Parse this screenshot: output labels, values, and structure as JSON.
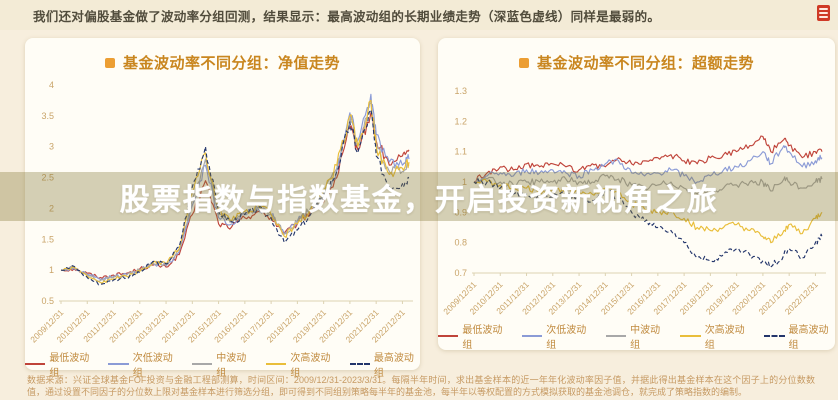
{
  "header": {
    "text": "我们还对偏股基金做了波动率分组回测，结果显示：最高波动组的长期业绩走势（深蓝色虚线）同样是最弱的。"
  },
  "banner": {
    "text": "股票指数与指数基金，开启投资新视角之旅"
  },
  "footer": {
    "text": "数据来源：兴证全球基金FOF投资与金融工程部测算，时间区间：2009/12/31-2023/3/31。每隔半年时间，求出基金样本的近一年年化波动率因子值，并据此得出基金样本在这个因子上的分位数数值，通过设置不同因子的分位数上限对基金样本进行筛选分组，即可得到不同组别策略每半年的基金池，每半年以等权配置的方式模拟获取的基金池调仓，就完成了策略指数的编制。"
  },
  "colors": {
    "title_orange": "#c9861f",
    "axis_label": "#c9a469",
    "axis_line": "#dcd2b2",
    "banner_overlay": "rgba(128,117,52,0.34)",
    "stamp_red": "#cf3a26"
  },
  "chart_data": [
    {
      "type": "line",
      "title": "基金波动率不同分组：净值走势",
      "x_labels": [
        "2009/12/31",
        "2010/12/31",
        "2011/12/31",
        "2012/12/31",
        "2013/12/31",
        "2014/12/31",
        "2015/12/31",
        "2016/12/31",
        "2017/12/31",
        "2018/12/31",
        "2019/12/31",
        "2020/12/31",
        "2021/12/31",
        "2022/12/31"
      ],
      "ylim": [
        0.5,
        4
      ],
      "yticks": [
        0.5,
        1,
        1.5,
        2,
        2.5,
        3,
        3.5,
        4
      ],
      "x": [
        0,
        0.5,
        1,
        1.5,
        2,
        2.5,
        3,
        3.5,
        4,
        4.5,
        5,
        5.5,
        6,
        6.5,
        7,
        7.5,
        8,
        8.5,
        9,
        9.5,
        10,
        10.5,
        11,
        11.3,
        11.8,
        12,
        12.5,
        13,
        13.25
      ],
      "series": [
        {
          "name": "最低波动组",
          "color": "#c0443a",
          "dash": false,
          "values": [
            1,
            1.02,
            0.95,
            0.88,
            0.92,
            0.95,
            1.02,
            1.08,
            1.05,
            1.25,
            1.9,
            2.45,
            1.75,
            1.7,
            1.85,
            1.95,
            1.85,
            1.6,
            1.75,
            1.95,
            2.1,
            2.5,
            3.3,
            2.95,
            3.55,
            3.1,
            2.7,
            2.85,
            2.95
          ]
        },
        {
          "name": "次低波动组",
          "color": "#8b9bd6",
          "dash": false,
          "values": [
            1,
            1.03,
            0.93,
            0.85,
            0.9,
            0.93,
            1.0,
            1.1,
            1.07,
            1.3,
            2.05,
            2.7,
            1.85,
            1.75,
            1.9,
            2.0,
            1.9,
            1.6,
            1.8,
            2.0,
            2.2,
            2.6,
            3.55,
            3.1,
            3.85,
            3.2,
            2.75,
            2.7,
            2.8
          ]
        },
        {
          "name": "中波动组",
          "color": "#a8a8a8",
          "dash": false,
          "values": [
            1,
            1.04,
            0.92,
            0.83,
            0.88,
            0.92,
            1.0,
            1.12,
            1.08,
            1.32,
            2.15,
            2.8,
            1.9,
            1.78,
            1.92,
            2.02,
            1.9,
            1.58,
            1.78,
            2.0,
            2.25,
            2.65,
            3.45,
            3.0,
            3.7,
            3.05,
            2.6,
            2.6,
            2.7
          ]
        },
        {
          "name": "次高波动组",
          "color": "#e9be3a",
          "dash": false,
          "values": [
            1,
            1.05,
            0.9,
            0.8,
            0.86,
            0.9,
            0.98,
            1.12,
            1.1,
            1.35,
            2.25,
            2.9,
            1.95,
            1.8,
            1.95,
            2.05,
            1.9,
            1.55,
            1.75,
            1.98,
            2.3,
            2.7,
            3.5,
            3.0,
            3.75,
            3.0,
            2.55,
            2.65,
            2.75
          ]
        },
        {
          "name": "最高波动组",
          "color": "#23356b",
          "dash": true,
          "values": [
            1,
            1.06,
            0.88,
            0.77,
            0.84,
            0.88,
            0.96,
            1.14,
            1.1,
            1.38,
            2.35,
            3.0,
            1.95,
            1.78,
            1.9,
            2.0,
            1.85,
            1.45,
            1.65,
            1.9,
            2.2,
            2.6,
            3.4,
            2.9,
            3.6,
            2.85,
            2.35,
            2.4,
            2.5
          ]
        }
      ]
    },
    {
      "type": "line",
      "title": "基金波动率不同分组：超额走势",
      "x_labels": [
        "2009/12/31",
        "2010/12/31",
        "2011/12/31",
        "2012/12/31",
        "2013/12/31",
        "2014/12/31",
        "2015/12/31",
        "2016/12/31",
        "2017/12/31",
        "2018/12/31",
        "2019/12/31",
        "2020/12/31",
        "2021/12/31",
        "2022/12/31"
      ],
      "ylim": [
        0.7,
        1.3
      ],
      "yticks": [
        0.7,
        0.8,
        0.9,
        1,
        1.1,
        1.2,
        1.3
      ],
      "x": [
        0,
        0.5,
        1,
        1.5,
        2,
        2.5,
        3,
        3.5,
        4,
        4.5,
        5,
        5.5,
        6,
        6.5,
        7,
        7.5,
        8,
        8.5,
        9,
        9.5,
        10,
        10.5,
        11,
        11.3,
        11.8,
        12,
        12.5,
        13,
        13.25
      ],
      "series": [
        {
          "name": "最低波动组",
          "color": "#c0443a",
          "dash": false,
          "values": [
            1,
            1.03,
            1.05,
            1.04,
            1.06,
            1.05,
            1.06,
            1.05,
            1.04,
            1.06,
            1.05,
            1.08,
            1.06,
            1.07,
            1.08,
            1.09,
            1.07,
            1.06,
            1.08,
            1.09,
            1.1,
            1.12,
            1.15,
            1.1,
            1.14,
            1.12,
            1.08,
            1.1,
            1.1
          ]
        },
        {
          "name": "次低波动组",
          "color": "#8b9bd6",
          "dash": false,
          "values": [
            1,
            1.02,
            1.03,
            1.02,
            1.04,
            1.03,
            1.04,
            1.03,
            1.02,
            1.04,
            1.06,
            1.07,
            1.03,
            1.02,
            1.03,
            1.04,
            1.02,
            1.0,
            1.02,
            1.04,
            1.05,
            1.07,
            1.1,
            1.06,
            1.12,
            1.1,
            1.05,
            1.07,
            1.08
          ]
        },
        {
          "name": "中波动组",
          "color": "#a8a8a8",
          "dash": false,
          "values": [
            1,
            1.01,
            1.0,
            0.99,
            1.0,
            1.0,
            1.0,
            1.01,
            1.0,
            1.0,
            1.02,
            1.01,
            0.99,
            0.98,
            0.99,
            1.0,
            0.98,
            0.96,
            0.97,
            0.98,
            0.99,
            1.0,
            1.0,
            0.97,
            1.01,
            1.0,
            0.98,
            1.0,
            1.01
          ]
        },
        {
          "name": "次高波动组",
          "color": "#e9be3a",
          "dash": false,
          "values": [
            1,
            1.0,
            0.99,
            0.98,
            0.98,
            0.97,
            0.97,
            0.98,
            0.97,
            0.96,
            0.98,
            0.96,
            0.93,
            0.91,
            0.9,
            0.9,
            0.88,
            0.85,
            0.84,
            0.85,
            0.86,
            0.84,
            0.82,
            0.8,
            0.84,
            0.86,
            0.83,
            0.88,
            0.9
          ]
        },
        {
          "name": "最高波动组",
          "color": "#23356b",
          "dash": true,
          "values": [
            1,
            1.0,
            0.98,
            0.96,
            0.96,
            0.95,
            0.95,
            0.96,
            0.95,
            0.94,
            0.97,
            0.95,
            0.9,
            0.87,
            0.85,
            0.84,
            0.8,
            0.75,
            0.74,
            0.76,
            0.78,
            0.76,
            0.74,
            0.72,
            0.76,
            0.78,
            0.75,
            0.8,
            0.82
          ]
        }
      ]
    }
  ]
}
